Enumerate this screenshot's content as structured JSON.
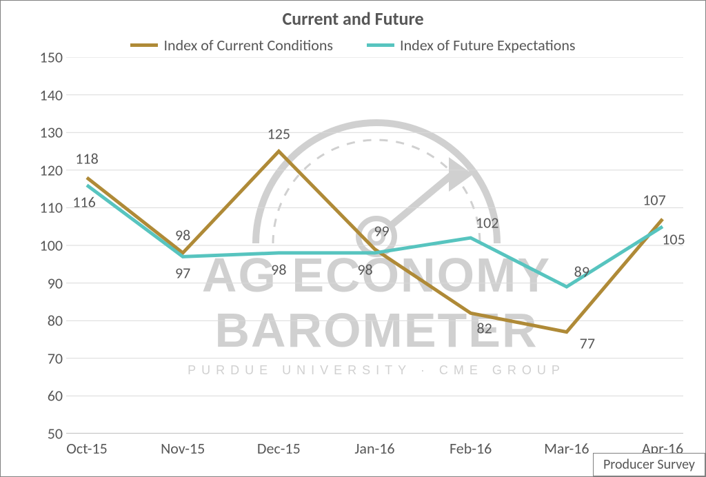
{
  "chart": {
    "type": "line",
    "title": "Current and Future",
    "title_fontsize": 26,
    "title_color": "#575757",
    "background_color": "#ffffff",
    "border_color": "#808080",
    "grid_color": "#d9d9d9",
    "axis_color": "#bfbfbf",
    "label_color": "#575757",
    "label_fontsize": 22,
    "ylim": [
      50,
      150
    ],
    "xtick_labels": [
      "Oct-15",
      "Nov-15",
      "Dec-15",
      "Jan-16",
      "Feb-16",
      "Mar-16",
      "Apr-16"
    ],
    "ytick_values": [
      50,
      60,
      70,
      80,
      90,
      100,
      110,
      120,
      130,
      140,
      150
    ],
    "legend": {
      "items": [
        {
          "label": "Index of Current Conditions",
          "color": "#af8a37"
        },
        {
          "label": "Index of Future Expectations",
          "color": "#57c4bf"
        }
      ],
      "fontsize": 22
    },
    "series": [
      {
        "name": "Index of Current Conditions",
        "color": "#af8a37",
        "line_width": 5,
        "values": [
          118,
          98,
          125,
          99,
          82,
          77,
          107
        ],
        "labels": [
          {
            "text": "118",
            "dx": 0,
            "dy": -28
          },
          {
            "text": "98",
            "dx": 0,
            "dy": -26
          },
          {
            "text": "125",
            "dx": 0,
            "dy": -26
          },
          {
            "text": "99",
            "dx": 10,
            "dy": -26
          },
          {
            "text": "82",
            "dx": 20,
            "dy": 22
          },
          {
            "text": "77",
            "dx": 30,
            "dy": 16
          },
          {
            "text": "107",
            "dx": -12,
            "dy": -28
          }
        ]
      },
      {
        "name": "Index of Future Expectations",
        "color": "#57c4bf",
        "line_width": 5,
        "values": [
          116,
          97,
          98,
          98,
          102,
          89,
          105
        ],
        "labels": [
          {
            "text": "116",
            "dx": -4,
            "dy": 24
          },
          {
            "text": "97",
            "dx": 0,
            "dy": 24
          },
          {
            "text": "98",
            "dx": 0,
            "dy": 24
          },
          {
            "text": "98",
            "dx": -14,
            "dy": 24
          },
          {
            "text": "102",
            "dx": 24,
            "dy": -22
          },
          {
            "text": "89",
            "dx": 22,
            "dy": -22
          },
          {
            "text": "105",
            "dx": 16,
            "dy": 18
          }
        ]
      }
    ],
    "watermark": {
      "line1": "AG ECONOMY",
      "line2": "BAROMETER",
      "line3": "PURDUE UNIVERSITY   ·   CME GROUP",
      "color": "#d0d0d0"
    },
    "footer_box": "Producer Survey"
  }
}
